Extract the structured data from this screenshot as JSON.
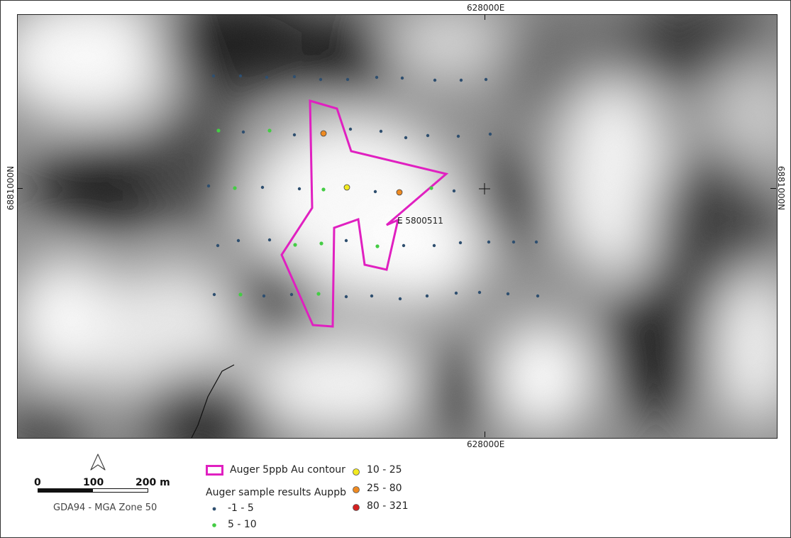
{
  "grid": {
    "easting_top": "628000E",
    "easting_bottom": "628000E",
    "northing_left": "6881000N",
    "northing_right": "6881000N"
  },
  "annotation": {
    "label": "E 5800511"
  },
  "scale": {
    "ticks": [
      "0",
      "100",
      "200 m"
    ],
    "crs": "GDA94 - MGA Zone 50"
  },
  "north_arrow": {
    "icon": "north-arrow-icon"
  },
  "legend": {
    "contour": {
      "label": "Auger 5ppb Au contour",
      "color": "#e020c0"
    },
    "samples_title": "Auger sample results Auppb",
    "classes": [
      {
        "label": "-1 - 5",
        "color": "#2f4f6f"
      },
      {
        "label": "5 - 10",
        "color": "#44cc44"
      },
      {
        "label": "10 - 25",
        "color": "#f2ea20"
      },
      {
        "label": "25 - 80",
        "color": "#ee8a22"
      },
      {
        "label": "80 - 321",
        "color": "#d42020"
      }
    ]
  }
}
